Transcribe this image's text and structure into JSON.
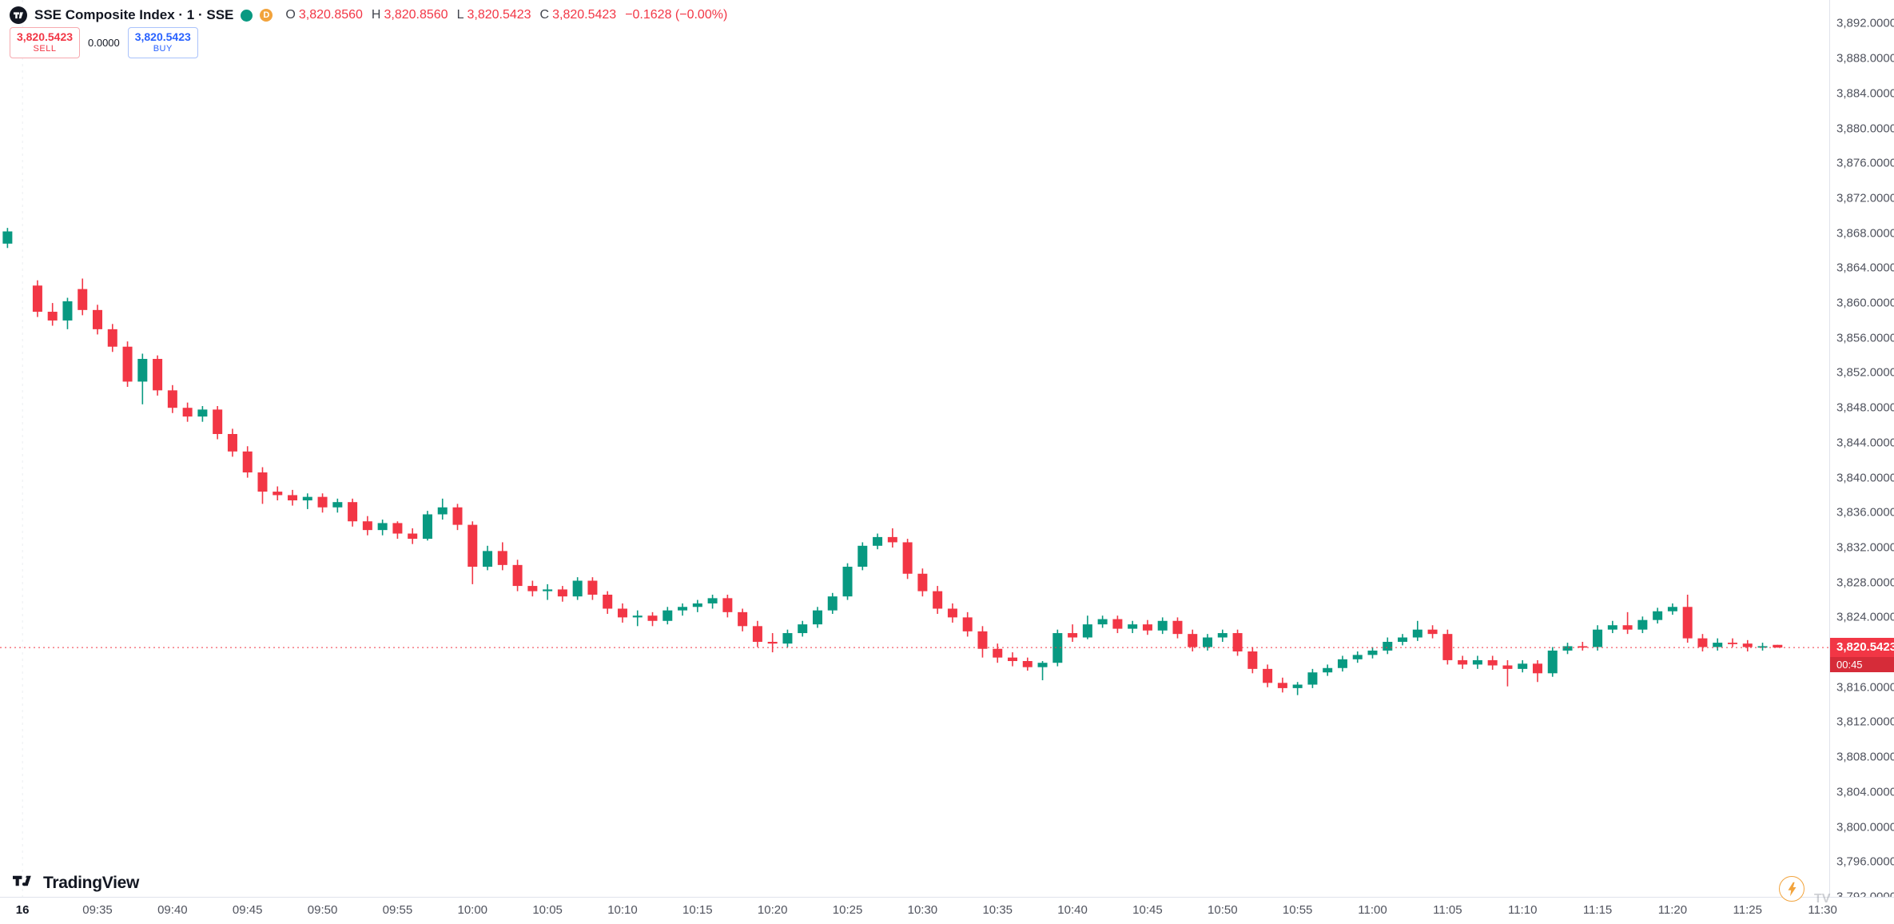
{
  "header": {
    "title": "SSE Composite Index · 1 · SSE",
    "delayed_badge": "D",
    "legend": {
      "o_label": "O",
      "o_value": "3,820.8560",
      "h_label": "H",
      "h_value": "3,820.8560",
      "l_label": "L",
      "l_value": "3,820.5423",
      "c_label": "C",
      "c_value": "3,820.5423",
      "change": "−0.1628 (−0.00%)"
    }
  },
  "order_panel": {
    "sell_price": "3,820.5423",
    "sell_label": "SELL",
    "spread": "0.0000",
    "buy_price": "3,820.5423",
    "buy_label": "BUY"
  },
  "price_label": {
    "value": "3,820.5423",
    "countdown": "00:45"
  },
  "footer": {
    "logo_text": "TradingView"
  },
  "watermark": {
    "text": "TV"
  },
  "colors": {
    "up": "#089981",
    "down": "#f23645",
    "buy": "#2962ff",
    "axis_text": "#50535e",
    "border": "#e0e3eb",
    "badge": "#f23645"
  },
  "chart_data": {
    "type": "candlestick",
    "symbol": "SSE Composite Index",
    "interval": "1",
    "exchange": "SSE",
    "last_price": 3820.5423,
    "slots": 122,
    "session_break_slot": 1,
    "y_view": [
      3792.0,
      3894.7
    ],
    "y_axis": {
      "min": 3792,
      "max": 3892,
      "step": 4,
      "format": "#,##0.0000"
    },
    "x_labels": [
      {
        "text": "16",
        "slot": 1,
        "date": true
      },
      {
        "text": "09:35",
        "slot": 6
      },
      {
        "text": "09:40",
        "slot": 11
      },
      {
        "text": "09:45",
        "slot": 16
      },
      {
        "text": "09:50",
        "slot": 21
      },
      {
        "text": "09:55",
        "slot": 26
      },
      {
        "text": "10:00",
        "slot": 31
      },
      {
        "text": "10:05",
        "slot": 36
      },
      {
        "text": "10:10",
        "slot": 41
      },
      {
        "text": "10:15",
        "slot": 46
      },
      {
        "text": "10:20",
        "slot": 51
      },
      {
        "text": "10:25",
        "slot": 56
      },
      {
        "text": "10:30",
        "slot": 61
      },
      {
        "text": "10:35",
        "slot": 66
      },
      {
        "text": "10:40",
        "slot": 71
      },
      {
        "text": "10:45",
        "slot": 76
      },
      {
        "text": "10:50",
        "slot": 81
      },
      {
        "text": "10:55",
        "slot": 86
      },
      {
        "text": "11:00",
        "slot": 91
      },
      {
        "text": "11:05",
        "slot": 96
      },
      {
        "text": "11:10",
        "slot": 101
      },
      {
        "text": "11:15",
        "slot": 106
      },
      {
        "text": "11:20",
        "slot": 111
      },
      {
        "text": "11:25",
        "slot": 116
      },
      {
        "text": "11:30",
        "slot": 121
      }
    ],
    "ohlc_keys": [
      "slot",
      "open",
      "high",
      "low",
      "close"
    ],
    "candles": [
      [
        0,
        3866.8,
        3868.6,
        3866.3,
        3868.2
      ],
      [
        2,
        3862.0,
        3862.6,
        3858.4,
        3859.0
      ],
      [
        3,
        3859.0,
        3860.0,
        3857.4,
        3858.0
      ],
      [
        4,
        3858.0,
        3860.6,
        3857.0,
        3860.2
      ],
      [
        5,
        3861.6,
        3862.8,
        3858.6,
        3859.2
      ],
      [
        6,
        3859.2,
        3859.8,
        3856.4,
        3857.0
      ],
      [
        7,
        3857.0,
        3857.6,
        3854.4,
        3855.0
      ],
      [
        8,
        3855.0,
        3855.6,
        3850.4,
        3851.0
      ],
      [
        9,
        3851.0,
        3854.2,
        3848.4,
        3853.6
      ],
      [
        10,
        3853.6,
        3854.0,
        3849.4,
        3850.0
      ],
      [
        11,
        3850.0,
        3850.6,
        3847.4,
        3848.0
      ],
      [
        12,
        3848.0,
        3848.6,
        3846.4,
        3847.0
      ],
      [
        13,
        3847.0,
        3848.2,
        3846.4,
        3847.8
      ],
      [
        14,
        3847.8,
        3848.2,
        3844.4,
        3845.0
      ],
      [
        15,
        3845.0,
        3845.6,
        3842.4,
        3843.0
      ],
      [
        16,
        3843.0,
        3843.6,
        3840.0,
        3840.6
      ],
      [
        17,
        3840.6,
        3841.2,
        3837.0,
        3838.4
      ],
      [
        18,
        3838.4,
        3839.0,
        3837.4,
        3838.0
      ],
      [
        19,
        3838.0,
        3838.6,
        3836.8,
        3837.4
      ],
      [
        20,
        3837.4,
        3838.2,
        3836.4,
        3837.8
      ],
      [
        21,
        3837.8,
        3838.2,
        3836.0,
        3836.6
      ],
      [
        22,
        3836.6,
        3837.6,
        3836.0,
        3837.2
      ],
      [
        23,
        3837.2,
        3837.6,
        3834.4,
        3835.0
      ],
      [
        24,
        3835.0,
        3835.6,
        3833.4,
        3834.0
      ],
      [
        25,
        3834.0,
        3835.2,
        3833.4,
        3834.8
      ],
      [
        26,
        3834.8,
        3835.0,
        3833.0,
        3833.6
      ],
      [
        27,
        3833.6,
        3834.2,
        3832.4,
        3833.0
      ],
      [
        28,
        3833.0,
        3836.2,
        3832.8,
        3835.8
      ],
      [
        29,
        3835.8,
        3837.6,
        3835.2,
        3836.6
      ],
      [
        30,
        3836.6,
        3837.0,
        3834.0,
        3834.6
      ],
      [
        31,
        3834.6,
        3835.0,
        3827.8,
        3829.8
      ],
      [
        32,
        3829.8,
        3832.2,
        3829.4,
        3831.6
      ],
      [
        33,
        3831.6,
        3832.6,
        3829.4,
        3830.0
      ],
      [
        34,
        3830.0,
        3830.6,
        3827.0,
        3827.6
      ],
      [
        35,
        3827.6,
        3828.2,
        3826.4,
        3827.0
      ],
      [
        36,
        3827.0,
        3827.8,
        3826.0,
        3827.2
      ],
      [
        37,
        3827.2,
        3827.6,
        3825.8,
        3826.4
      ],
      [
        38,
        3826.4,
        3828.6,
        3826.0,
        3828.2
      ],
      [
        39,
        3828.2,
        3828.6,
        3826.0,
        3826.6
      ],
      [
        40,
        3826.6,
        3827.0,
        3824.4,
        3825.0
      ],
      [
        41,
        3825.0,
        3825.6,
        3823.4,
        3824.0
      ],
      [
        42,
        3824.0,
        3824.8,
        3823.0,
        3824.2
      ],
      [
        43,
        3824.2,
        3824.6,
        3823.0,
        3823.6
      ],
      [
        44,
        3823.6,
        3825.2,
        3823.2,
        3824.8
      ],
      [
        45,
        3824.8,
        3825.6,
        3824.2,
        3825.2
      ],
      [
        46,
        3825.2,
        3826.0,
        3824.6,
        3825.6
      ],
      [
        47,
        3825.6,
        3826.6,
        3825.0,
        3826.2
      ],
      [
        48,
        3826.2,
        3826.6,
        3824.0,
        3824.6
      ],
      [
        49,
        3824.6,
        3825.0,
        3822.4,
        3823.0
      ],
      [
        50,
        3823.0,
        3823.6,
        3820.6,
        3821.2
      ],
      [
        51,
        3821.2,
        3822.2,
        3820.0,
        3821.0
      ],
      [
        52,
        3821.0,
        3822.6,
        3820.6,
        3822.2
      ],
      [
        53,
        3822.2,
        3823.6,
        3821.8,
        3823.2
      ],
      [
        54,
        3823.2,
        3825.2,
        3822.8,
        3824.8
      ],
      [
        55,
        3824.8,
        3826.8,
        3824.4,
        3826.4
      ],
      [
        56,
        3826.4,
        3830.2,
        3826.0,
        3829.8
      ],
      [
        57,
        3829.8,
        3832.6,
        3829.4,
        3832.2
      ],
      [
        58,
        3832.2,
        3833.6,
        3831.8,
        3833.2
      ],
      [
        59,
        3833.2,
        3834.2,
        3832.0,
        3832.6
      ],
      [
        60,
        3832.6,
        3833.0,
        3828.4,
        3829.0
      ],
      [
        61,
        3829.0,
        3829.6,
        3826.4,
        3827.0
      ],
      [
        62,
        3827.0,
        3827.6,
        3824.4,
        3825.0
      ],
      [
        63,
        3825.0,
        3825.6,
        3823.4,
        3824.0
      ],
      [
        64,
        3824.0,
        3824.6,
        3821.8,
        3822.4
      ],
      [
        65,
        3822.4,
        3823.0,
        3819.4,
        3820.4
      ],
      [
        66,
        3820.4,
        3821.0,
        3818.8,
        3819.4
      ],
      [
        67,
        3819.4,
        3820.0,
        3818.4,
        3819.0
      ],
      [
        68,
        3819.0,
        3819.4,
        3817.9,
        3818.3
      ],
      [
        69,
        3818.3,
        3819.0,
        3816.8,
        3818.8
      ],
      [
        70,
        3818.8,
        3822.6,
        3818.4,
        3822.2
      ],
      [
        71,
        3822.2,
        3823.2,
        3821.2,
        3821.7
      ],
      [
        72,
        3821.7,
        3824.2,
        3821.5,
        3823.2
      ],
      [
        73,
        3823.2,
        3824.2,
        3822.8,
        3823.8
      ],
      [
        74,
        3823.8,
        3824.2,
        3822.2,
        3822.7
      ],
      [
        75,
        3822.7,
        3823.6,
        3822.2,
        3823.2
      ],
      [
        76,
        3823.2,
        3823.7,
        3822.0,
        3822.5
      ],
      [
        77,
        3822.5,
        3824.0,
        3822.1,
        3823.6
      ],
      [
        78,
        3823.6,
        3824.0,
        3821.6,
        3822.1
      ],
      [
        79,
        3822.1,
        3822.6,
        3820.1,
        3820.6
      ],
      [
        80,
        3820.6,
        3822.1,
        3820.2,
        3821.7
      ],
      [
        81,
        3821.7,
        3822.6,
        3821.2,
        3822.2
      ],
      [
        82,
        3822.2,
        3822.6,
        3819.6,
        3820.1
      ],
      [
        83,
        3820.1,
        3820.6,
        3817.6,
        3818.1
      ],
      [
        84,
        3818.1,
        3818.6,
        3816.0,
        3816.5
      ],
      [
        85,
        3816.5,
        3817.1,
        3815.4,
        3815.9
      ],
      [
        86,
        3815.9,
        3816.6,
        3815.1,
        3816.3
      ],
      [
        87,
        3816.3,
        3818.1,
        3815.9,
        3817.7
      ],
      [
        88,
        3817.7,
        3818.6,
        3817.3,
        3818.2
      ],
      [
        89,
        3818.2,
        3819.6,
        3817.8,
        3819.2
      ],
      [
        90,
        3819.2,
        3820.1,
        3818.8,
        3819.7
      ],
      [
        91,
        3819.7,
        3820.6,
        3819.3,
        3820.2
      ],
      [
        92,
        3820.2,
        3821.7,
        3819.8,
        3821.2
      ],
      [
        93,
        3821.2,
        3822.1,
        3820.8,
        3821.7
      ],
      [
        94,
        3821.7,
        3823.6,
        3821.3,
        3822.6
      ],
      [
        95,
        3822.6,
        3823.1,
        3821.6,
        3822.1
      ],
      [
        96,
        3822.1,
        3822.6,
        3818.6,
        3819.1
      ],
      [
        97,
        3819.1,
        3819.6,
        3818.1,
        3818.6
      ],
      [
        98,
        3818.6,
        3819.6,
        3818.1,
        3819.1
      ],
      [
        99,
        3819.1,
        3819.6,
        3818.0,
        3818.5
      ],
      [
        100,
        3818.5,
        3819.1,
        3816.1,
        3818.1
      ],
      [
        101,
        3818.1,
        3819.1,
        3817.7,
        3818.7
      ],
      [
        102,
        3818.7,
        3819.1,
        3816.6,
        3817.6
      ],
      [
        103,
        3817.6,
        3820.6,
        3817.2,
        3820.2
      ],
      [
        104,
        3820.2,
        3821.1,
        3819.8,
        3820.7
      ],
      [
        105,
        3820.7,
        3821.2,
        3820.2,
        3820.6
      ],
      [
        106,
        3820.6,
        3823.1,
        3820.2,
        3822.6
      ],
      [
        107,
        3822.6,
        3823.6,
        3822.2,
        3823.1
      ],
      [
        108,
        3823.1,
        3824.6,
        3822.1,
        3822.6
      ],
      [
        109,
        3822.6,
        3824.1,
        3822.2,
        3823.7
      ],
      [
        110,
        3823.7,
        3825.1,
        3823.3,
        3824.7
      ],
      [
        111,
        3824.7,
        3825.6,
        3824.3,
        3825.2
      ],
      [
        112,
        3825.2,
        3826.6,
        3821.1,
        3821.6
      ],
      [
        113,
        3821.6,
        3822.1,
        3820.1,
        3820.6
      ],
      [
        114,
        3820.6,
        3821.6,
        3820.2,
        3821.1
      ],
      [
        115,
        3821.1,
        3821.6,
        3820.6,
        3821.0
      ],
      [
        116,
        3821.0,
        3821.4,
        3820.1,
        3820.6
      ],
      [
        117,
        3820.6,
        3821.1,
        3820.2,
        3820.7
      ],
      [
        118,
        3820.856,
        3820.856,
        3820.5423,
        3820.5423
      ]
    ]
  }
}
